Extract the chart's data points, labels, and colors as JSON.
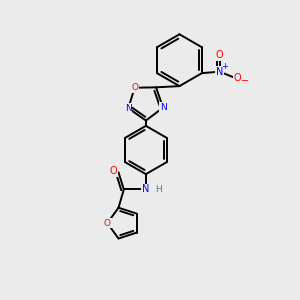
{
  "background_color": "#ebebeb",
  "line_color": "#000000",
  "bond_width": 1.4,
  "atom_colors": {
    "N": "#0000ff",
    "O": "#ff0000",
    "H": "#2f8f8f",
    "C": "#000000"
  },
  "nitro_N_color": "#0000ff",
  "nitro_O_color": "#ff0000"
}
